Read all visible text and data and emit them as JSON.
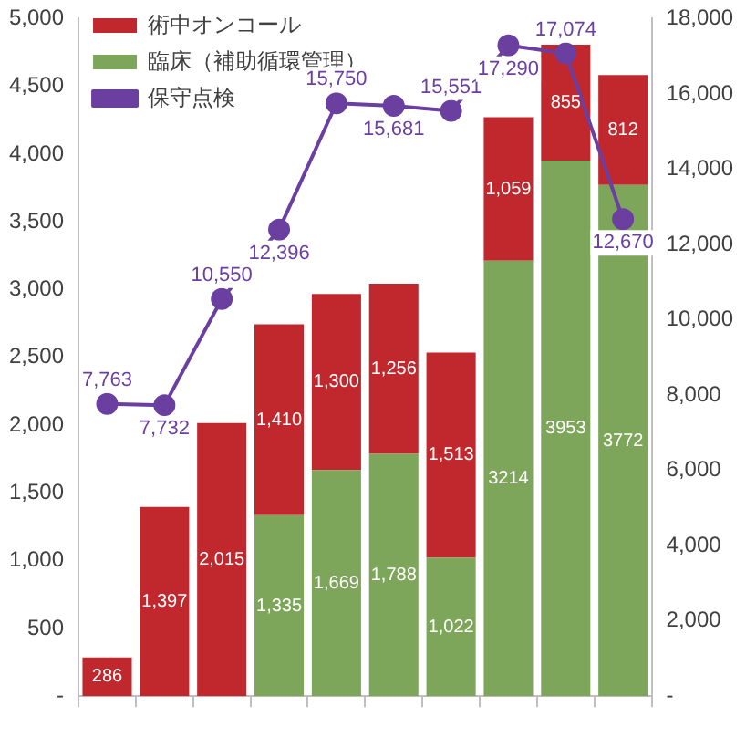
{
  "chart_data": {
    "type": "bar",
    "stacked": true,
    "categories": [
      null,
      null,
      null,
      null,
      null,
      null,
      null,
      null,
      null,
      null
    ],
    "series": [
      {
        "name": "臨床（補助循環管理）",
        "color": "#7ea65a",
        "values": [
          null,
          null,
          null,
          1335,
          1669,
          1788,
          1022,
          3214,
          3953,
          3772
        ],
        "value_labels": [
          null,
          null,
          null,
          "1,335",
          "1,669",
          "1,788",
          "1,022",
          "3214",
          "3953",
          "3772"
        ]
      },
      {
        "name": "術中オンコール",
        "color": "#c0282d",
        "values": [
          286,
          1397,
          2015,
          1410,
          1300,
          1256,
          1513,
          1059,
          855,
          812
        ],
        "value_labels": [
          "286",
          "1,397",
          "2,015",
          "1,410",
          "1,300",
          "1,256",
          "1,513",
          "1,059",
          "855",
          "812"
        ]
      },
      {
        "name": "保守点検",
        "type": "line",
        "axis": "y2",
        "color": "#6a3fa0",
        "marker": "circle",
        "values": [
          7763,
          7732,
          10550,
          12396,
          15750,
          15681,
          15551,
          17290,
          17074,
          12670
        ],
        "value_labels": [
          "7,763",
          "7,732",
          "10,550",
          "12,396",
          "15,750",
          "15,681",
          "15,551",
          "17,290",
          "17,074",
          "12,670"
        ]
      }
    ],
    "ylim": [
      0,
      5000
    ],
    "yticks": [
      {
        "value": 0,
        "label": "-"
      },
      500,
      {
        "value": 1000,
        "label": "1,000"
      },
      {
        "value": 1500,
        "label": "1,500"
      },
      {
        "value": 2000,
        "label": "2,000"
      },
      {
        "value": 2500,
        "label": "2,500"
      },
      {
        "value": 3000,
        "label": "3,000"
      },
      {
        "value": 3500,
        "label": "3,500"
      },
      {
        "value": 4000,
        "label": "4,000"
      },
      {
        "value": 4500,
        "label": "4,500"
      },
      {
        "value": 5000,
        "label": "5,000"
      }
    ],
    "y2lim": [
      0,
      18000
    ],
    "y2ticks": [
      {
        "value": 0,
        "label": "-"
      },
      {
        "value": 2000,
        "label": "2,000"
      },
      {
        "value": 4000,
        "label": "4,000"
      },
      {
        "value": 6000,
        "label": "6,000"
      },
      {
        "value": 8000,
        "label": "8,000"
      },
      {
        "value": 10000,
        "label": "10,000"
      },
      {
        "value": 12000,
        "label": "12,000"
      },
      {
        "value": 14000,
        "label": "14,000"
      },
      {
        "value": 16000,
        "label": "16,000"
      },
      {
        "value": 18000,
        "label": "18,000"
      }
    ],
    "grid": false,
    "legend": "top left"
  }
}
